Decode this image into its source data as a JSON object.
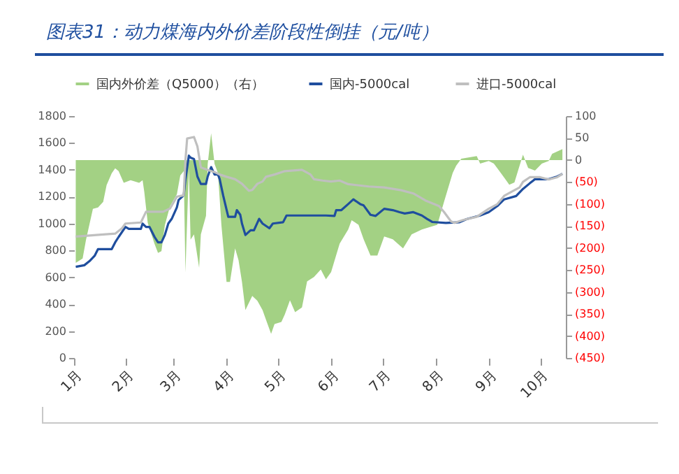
{
  "chart_data": {
    "type": "line",
    "title": "图表31：动力煤海内外价差阶段性倒挂（元/吨）",
    "xlim": [
      "--01-02",
      "--10-16"
    ],
    "xticks": [
      {
        "value": "--01-02",
        "label": "1月"
      },
      {
        "value": "--02-01",
        "label": "2月"
      },
      {
        "value": "--03-01",
        "label": "3月"
      },
      {
        "value": "--04-01",
        "label": "4月"
      },
      {
        "value": "--05-01",
        "label": "5月"
      },
      {
        "value": "--06-01",
        "label": "6月"
      },
      {
        "value": "--07-01",
        "label": "7月"
      },
      {
        "value": "--08-01",
        "label": "8月"
      },
      {
        "value": "--09-01",
        "label": "9月"
      },
      {
        "value": "--10-01",
        "label": "10月"
      }
    ],
    "ylim": [
      0,
      1800
    ],
    "yticks": [
      0,
      200,
      400,
      600,
      800,
      1000,
      1200,
      1400,
      1600,
      1800
    ],
    "y2lim": [
      -450,
      100
    ],
    "y2ticks": [
      {
        "value": -450,
        "label": "(450)"
      },
      {
        "value": -400,
        "label": "(400)"
      },
      {
        "value": -350,
        "label": "(350)"
      },
      {
        "value": -300,
        "label": "(300)"
      },
      {
        "value": -250,
        "label": "(250)"
      },
      {
        "value": -200,
        "label": "(200)"
      },
      {
        "value": -150,
        "label": "(150)"
      },
      {
        "value": -100,
        "label": "(100)"
      },
      {
        "value": -50,
        "label": "(50)"
      },
      0,
      50,
      100
    ],
    "legend": "top",
    "grid": false,
    "series": [
      {
        "name": "国内外价差（Q5000）（右）",
        "type": "area",
        "axis": "y2",
        "color": "#a3d184",
        "x": [
          "--01-03",
          "--01-07",
          "--01-09",
          "--01-13",
          "--01-16",
          "--01-19",
          "--01-21",
          "--01-24",
          "--01-26",
          "--01-28",
          "--01-31",
          "--02-04",
          "--02-09",
          "--02-11",
          "--02-12",
          "--02-14",
          "--02-18",
          "--02-20",
          "--02-22",
          "--02-24",
          "--02-27",
          "--03-03",
          "--03-05",
          "--03-07",
          "--03-08",
          "--03-10",
          "--03-11",
          "--03-13",
          "--03-16",
          "--03-17",
          "--03-20",
          "--03-21",
          "--03-23",
          "--03-25",
          "--03-27",
          "--03-29",
          "--04-01",
          "--04-03",
          "--04-06",
          "--04-08",
          "--04-10",
          "--04-12",
          "--04-16",
          "--04-19",
          "--04-22",
          "--04-24",
          "--04-27",
          "--04-29",
          "--05-03",
          "--05-05",
          "--05-08",
          "--05-11",
          "--05-15",
          "--05-18",
          "--05-22",
          "--05-26",
          "--05-29",
          "--06-01",
          "--06-06",
          "--06-11",
          "--06-13",
          "--06-17",
          "--06-20",
          "--06-24",
          "--06-28",
          "--07-02",
          "--07-07",
          "--07-13",
          "--07-18",
          "--07-24",
          "--07-28",
          "--08-02",
          "--08-06",
          "--08-11",
          "--08-13",
          "--08-16",
          "--08-19",
          "--08-25",
          "--08-27",
          "--09-01",
          "--09-04",
          "--09-08",
          "--09-13",
          "--09-16",
          "--09-19",
          "--09-21",
          "--09-24",
          "--09-28",
          "--10-02",
          "--10-06",
          "--10-08",
          "--10-14"
        ],
        "values": [
          -234,
          -224,
          -181,
          -111,
          -108,
          -95,
          -57,
          -30,
          -19,
          -25,
          -52,
          -46,
          -52,
          -46,
          -73,
          -143,
          -191,
          -211,
          -207,
          -148,
          -105,
          -78,
          -35,
          -25,
          -256,
          -19,
          -181,
          -169,
          -245,
          -169,
          -127,
          -9,
          61,
          -9,
          -30,
          -148,
          -277,
          -277,
          -201,
          -228,
          -277,
          -341,
          -309,
          -320,
          -341,
          -363,
          -395,
          -373,
          -368,
          -351,
          -319,
          -346,
          -335,
          -276,
          -266,
          -249,
          -271,
          -255,
          -190,
          -158,
          -137,
          -147,
          -180,
          -217,
          -217,
          -174,
          -180,
          -201,
          -169,
          -158,
          -153,
          -147,
          -94,
          -29,
          -13,
          3,
          5,
          9,
          -8,
          -2,
          -8,
          -29,
          -56,
          -51,
          -13,
          12,
          -18,
          -24,
          -8,
          -2,
          14,
          25
        ]
      },
      {
        "name": "国内-5000cal",
        "color": "#1f4e9e",
        "x": [
          "--01-03",
          "--01-08",
          "--01-11",
          "--01-14",
          "--01-16",
          "--01-24",
          "--01-26",
          "--01-28",
          "--02-01",
          "--02-03",
          "--02-10",
          "--02-11",
          "--02-13",
          "--02-15",
          "--02-18",
          "--02-20",
          "--02-22",
          "--02-24",
          "--02-26",
          "--02-28",
          "--03-03",
          "--03-04",
          "--03-07",
          "--03-08",
          "--03-10",
          "--03-11",
          "--03-13",
          "--03-15",
          "--03-17",
          "--03-20",
          "--03-21",
          "--03-23",
          "--03-25",
          "--03-27",
          "--03-28",
          "--03-30",
          "--04-02",
          "--04-06",
          "--04-07",
          "--04-09",
          "--04-10",
          "--04-12",
          "--04-15",
          "--04-17",
          "--04-20",
          "--04-22",
          "--04-26",
          "--04-28",
          "--05-04",
          "--05-06",
          "--05-29",
          "--06-03",
          "--06-04",
          "--06-07",
          "--06-11",
          "--06-14",
          "--06-18",
          "--06-20",
          "--06-24",
          "--06-27",
          "--07-02",
          "--07-07",
          "--07-11",
          "--07-14",
          "--07-19",
          "--07-24",
          "--07-27",
          "--07-30",
          "--08-07",
          "--08-15",
          "--08-19",
          "--08-27",
          "--09-01",
          "--09-06",
          "--09-10",
          "--09-17",
          "--09-21",
          "--09-25",
          "--09-28",
          "--10-06",
          "--10-11",
          "--10-14"
        ],
        "values": [
          678,
          690,
          720,
          760,
          810,
          810,
          860,
          900,
          975,
          960,
          960,
          1000,
          975,
          975,
          900,
          860,
          860,
          915,
          1000,
          1035,
          1120,
          1175,
          1210,
          1330,
          1505,
          1490,
          1480,
          1350,
          1295,
          1295,
          1350,
          1420,
          1365,
          1365,
          1330,
          1210,
          1050,
          1050,
          1100,
          1065,
          1000,
          915,
          950,
          950,
          1035,
          1000,
          965,
          1000,
          1010,
          1060,
          1060,
          1057,
          1100,
          1100,
          1145,
          1180,
          1145,
          1135,
          1065,
          1057,
          1110,
          1100,
          1085,
          1075,
          1085,
          1060,
          1035,
          1012,
          1005,
          1010,
          1033,
          1060,
          1085,
          1130,
          1180,
          1205,
          1258,
          1300,
          1330,
          1330,
          1350,
          1370
        ]
      },
      {
        "name": "进口-5000cal",
        "color": "#bfbfbf",
        "x": [
          "--01-03",
          "--01-15",
          "--01-26",
          "--01-30",
          "--02-01",
          "--02-10",
          "--02-13",
          "--02-23",
          "--02-27",
          "--03-03",
          "--03-07",
          "--03-08",
          "--03-09",
          "--03-13",
          "--03-15",
          "--03-17",
          "--03-21",
          "--03-25",
          "--03-28",
          "--04-01",
          "--04-06",
          "--04-10",
          "--04-14",
          "--04-16",
          "--04-19",
          "--04-22",
          "--04-24",
          "--04-29",
          "--05-05",
          "--05-15",
          "--05-20",
          "--05-22",
          "--05-27",
          "--06-01",
          "--06-06",
          "--06-11",
          "--06-23",
          "--07-02",
          "--07-12",
          "--07-19",
          "--07-26",
          "--08-03",
          "--08-06",
          "--08-10",
          "--08-12",
          "--08-17",
          "--08-25",
          "--09-01",
          "--09-06",
          "--09-10",
          "--09-15",
          "--09-19",
          "--09-21",
          "--09-25",
          "--10-01",
          "--10-06",
          "--10-11",
          "--10-14"
        ],
        "values": [
          903,
          915,
          925,
          965,
          1000,
          1008,
          1088,
          1088,
          1112,
          1200,
          1210,
          1470,
          1633,
          1644,
          1574,
          1418,
          1400,
          1383,
          1365,
          1348,
          1330,
          1296,
          1244,
          1250,
          1296,
          1313,
          1348,
          1365,
          1390,
          1400,
          1365,
          1330,
          1320,
          1313,
          1320,
          1293,
          1276,
          1269,
          1248,
          1224,
          1172,
          1130,
          1085,
          1016,
          1005,
          1026,
          1050,
          1110,
          1144,
          1206,
          1241,
          1269,
          1310,
          1345,
          1345,
          1328,
          1345,
          1370
        ]
      }
    ]
  }
}
